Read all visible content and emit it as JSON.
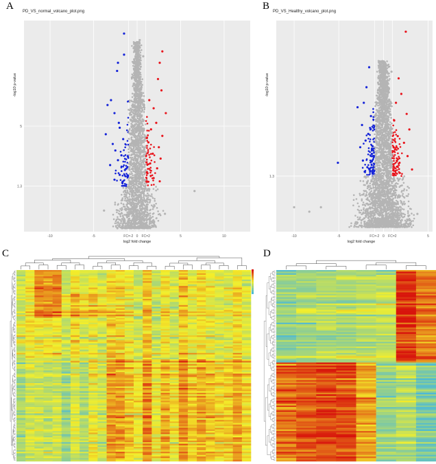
{
  "panels": {
    "a": {
      "letter": "A",
      "title": "PD_VS_normal_volcano_plot.png"
    },
    "b": {
      "letter": "B",
      "title": "PD_VS_Healthy_volcano_plot.png"
    },
    "c": {
      "letter": "C"
    },
    "d": {
      "letter": "D"
    }
  },
  "colors": {
    "background": "#ebebeb",
    "grid": "#ffffff",
    "up": "#e8141c",
    "down": "#1423d8",
    "ns": "#b4b4b4",
    "heat_low": "#4ab8d8",
    "heat_mid": "#f4ef2a",
    "heat_high": "#d8140c"
  },
  "chart_data": [
    {
      "type": "scatter",
      "title": "PD_VS_normal_volcano_plot.png",
      "xlabel": "log2 fold change",
      "ylabel": "-log10 p-value",
      "xlim": [
        -13,
        13
      ],
      "ylim": [
        -1.5,
        11.5
      ],
      "x_ticks": [
        "-10",
        "-5",
        "FC=-2",
        "0",
        "FC=2",
        "5",
        "10"
      ],
      "x_tick_values": [
        -10,
        -5,
        -1,
        0,
        1,
        5,
        10
      ],
      "y_ticks": [
        "1.3",
        "5"
      ],
      "y_tick_values": [
        1.3,
        5
      ],
      "threshold_x": [
        -1,
        1
      ],
      "threshold_y": 1.3,
      "grid": true,
      "series": [
        {
          "name": "down",
          "color": "#1423d8",
          "points": [
            [
              -1.5,
              10.7
            ],
            [
              -1.5,
              9.4
            ],
            [
              -2.2,
              8.9
            ],
            [
              -2.3,
              8.4
            ],
            [
              -3.0,
              6.6
            ],
            [
              -3.4,
              6.3
            ],
            [
              -2.6,
              5.8
            ],
            [
              -2.1,
              5.2
            ],
            [
              -2.0,
              4.9
            ],
            [
              -3.6,
              4.5
            ],
            [
              -1.6,
              4.2
            ],
            [
              -2.8,
              3.9
            ],
            [
              -2.5,
              3.5
            ],
            [
              -1.8,
              3.2
            ],
            [
              -2.2,
              2.9
            ],
            [
              -3.1,
              2.6
            ],
            [
              -1.4,
              2.3
            ],
            [
              -2.0,
              2.0
            ],
            [
              -2.6,
              1.7
            ],
            [
              -1.7,
              1.5
            ]
          ]
        },
        {
          "name": "up",
          "color": "#e8141c",
          "points": [
            [
              2.9,
              9.6
            ],
            [
              2.6,
              8.9
            ],
            [
              2.4,
              7.9
            ],
            [
              2.8,
              7.2
            ],
            [
              1.4,
              6.6
            ],
            [
              1.9,
              6.1
            ],
            [
              3.3,
              5.8
            ],
            [
              2.2,
              5.2
            ],
            [
              1.6,
              4.8
            ],
            [
              2.9,
              4.4
            ],
            [
              1.3,
              4.0
            ],
            [
              2.5,
              3.7
            ],
            [
              1.8,
              3.3
            ],
            [
              2.7,
              3.0
            ],
            [
              1.5,
              2.7
            ],
            [
              2.3,
              2.4
            ],
            [
              1.2,
              2.1
            ],
            [
              1.9,
              1.8
            ],
            [
              2.6,
              1.6
            ]
          ]
        },
        {
          "name": "ns",
          "color": "#b4b4b4",
          "points": [
            [
              0.3,
              10.3
            ],
            [
              -0.4,
              9.8
            ],
            [
              0.7,
              9.3
            ],
            [
              0.1,
              8.6
            ],
            [
              -0.6,
              8.0
            ],
            [
              0.5,
              7.4
            ],
            [
              -0.2,
              6.8
            ],
            [
              0.8,
              6.2
            ],
            [
              -0.8,
              5.7
            ],
            [
              0.2,
              5.1
            ],
            [
              -0.5,
              4.6
            ],
            [
              0.6,
              4.1
            ],
            [
              -0.1,
              3.6
            ],
            [
              0.4,
              3.1
            ],
            [
              -0.7,
              2.6
            ],
            [
              0.9,
              2.1
            ],
            [
              -0.3,
              1.6
            ],
            [
              6.6,
              1.0
            ],
            [
              -3.8,
              -0.2
            ],
            [
              3.2,
              -0.4
            ]
          ]
        }
      ]
    },
    {
      "type": "scatter",
      "title": "PD_VS_Healthy_volcano_plot.png",
      "xlabel": "log2 fold change",
      "ylabel": "-log10 p-value",
      "xlim": [
        -12,
        5.5
      ],
      "ylim": [
        -1.2,
        8.3
      ],
      "x_ticks": [
        "-10",
        "-5",
        "FC=-2",
        "0",
        "FC=2",
        "5"
      ],
      "x_tick_values": [
        -10,
        -5,
        -1,
        0,
        1,
        5
      ],
      "y_ticks": [
        "1.3"
      ],
      "y_tick_values": [
        1.3
      ],
      "threshold_x": [
        -1,
        1
      ],
      "threshold_y": 1.3,
      "grid": true,
      "series": [
        {
          "name": "down",
          "color": "#1423d8",
          "points": [
            [
              -1.6,
              6.2
            ],
            [
              -1.9,
              5.3
            ],
            [
              -2.2,
              4.6
            ],
            [
              -2.9,
              4.4
            ],
            [
              -1.4,
              4.0
            ],
            [
              -2.4,
              3.6
            ],
            [
              -1.7,
              3.2
            ],
            [
              -2.0,
              2.9
            ],
            [
              -2.6,
              2.6
            ],
            [
              -1.3,
              2.3
            ],
            [
              -2.3,
              2.0
            ],
            [
              -1.8,
              1.7
            ],
            [
              -5.1,
              1.9
            ],
            [
              -2.1,
              1.5
            ]
          ]
        },
        {
          "name": "up",
          "color": "#e8141c",
          "points": [
            [
              2.5,
              7.8
            ],
            [
              1.7,
              5.7
            ],
            [
              2.0,
              5.0
            ],
            [
              1.4,
              4.6
            ],
            [
              2.6,
              4.1
            ],
            [
              1.2,
              3.8
            ],
            [
              2.9,
              3.4
            ],
            [
              1.6,
              3.1
            ],
            [
              2.3,
              2.8
            ],
            [
              1.3,
              2.5
            ],
            [
              2.7,
              2.2
            ],
            [
              1.8,
              1.9
            ],
            [
              3.2,
              1.6
            ]
          ]
        },
        {
          "name": "ns",
          "color": "#b4b4b4",
          "points": [
            [
              0.9,
              6.0
            ],
            [
              -0.6,
              5.5
            ],
            [
              0.3,
              5.1
            ],
            [
              0.5,
              4.4
            ],
            [
              -0.4,
              4.0
            ],
            [
              0.2,
              3.5
            ],
            [
              -0.2,
              2.9
            ],
            [
              0.6,
              2.4
            ],
            [
              -0.8,
              1.9
            ],
            [
              -10.0,
              -0.1
            ],
            [
              -8.3,
              -0.3
            ],
            [
              -7.0,
              -0.1
            ],
            [
              3.8,
              -0.4
            ]
          ]
        }
      ]
    },
    {
      "type": "heatmap",
      "columns": 26,
      "rows": 120,
      "color_scale": [
        "#4ab8d8",
        "#f4ef2a",
        "#d8140c"
      ],
      "dendrogram": "top and left",
      "legend": "top-right"
    },
    {
      "type": "heatmap",
      "columns": 8,
      "rows": 120,
      "color_scale": [
        "#4ab8d8",
        "#f4ef2a",
        "#d8140c"
      ],
      "dendrogram": "top and left"
    }
  ]
}
